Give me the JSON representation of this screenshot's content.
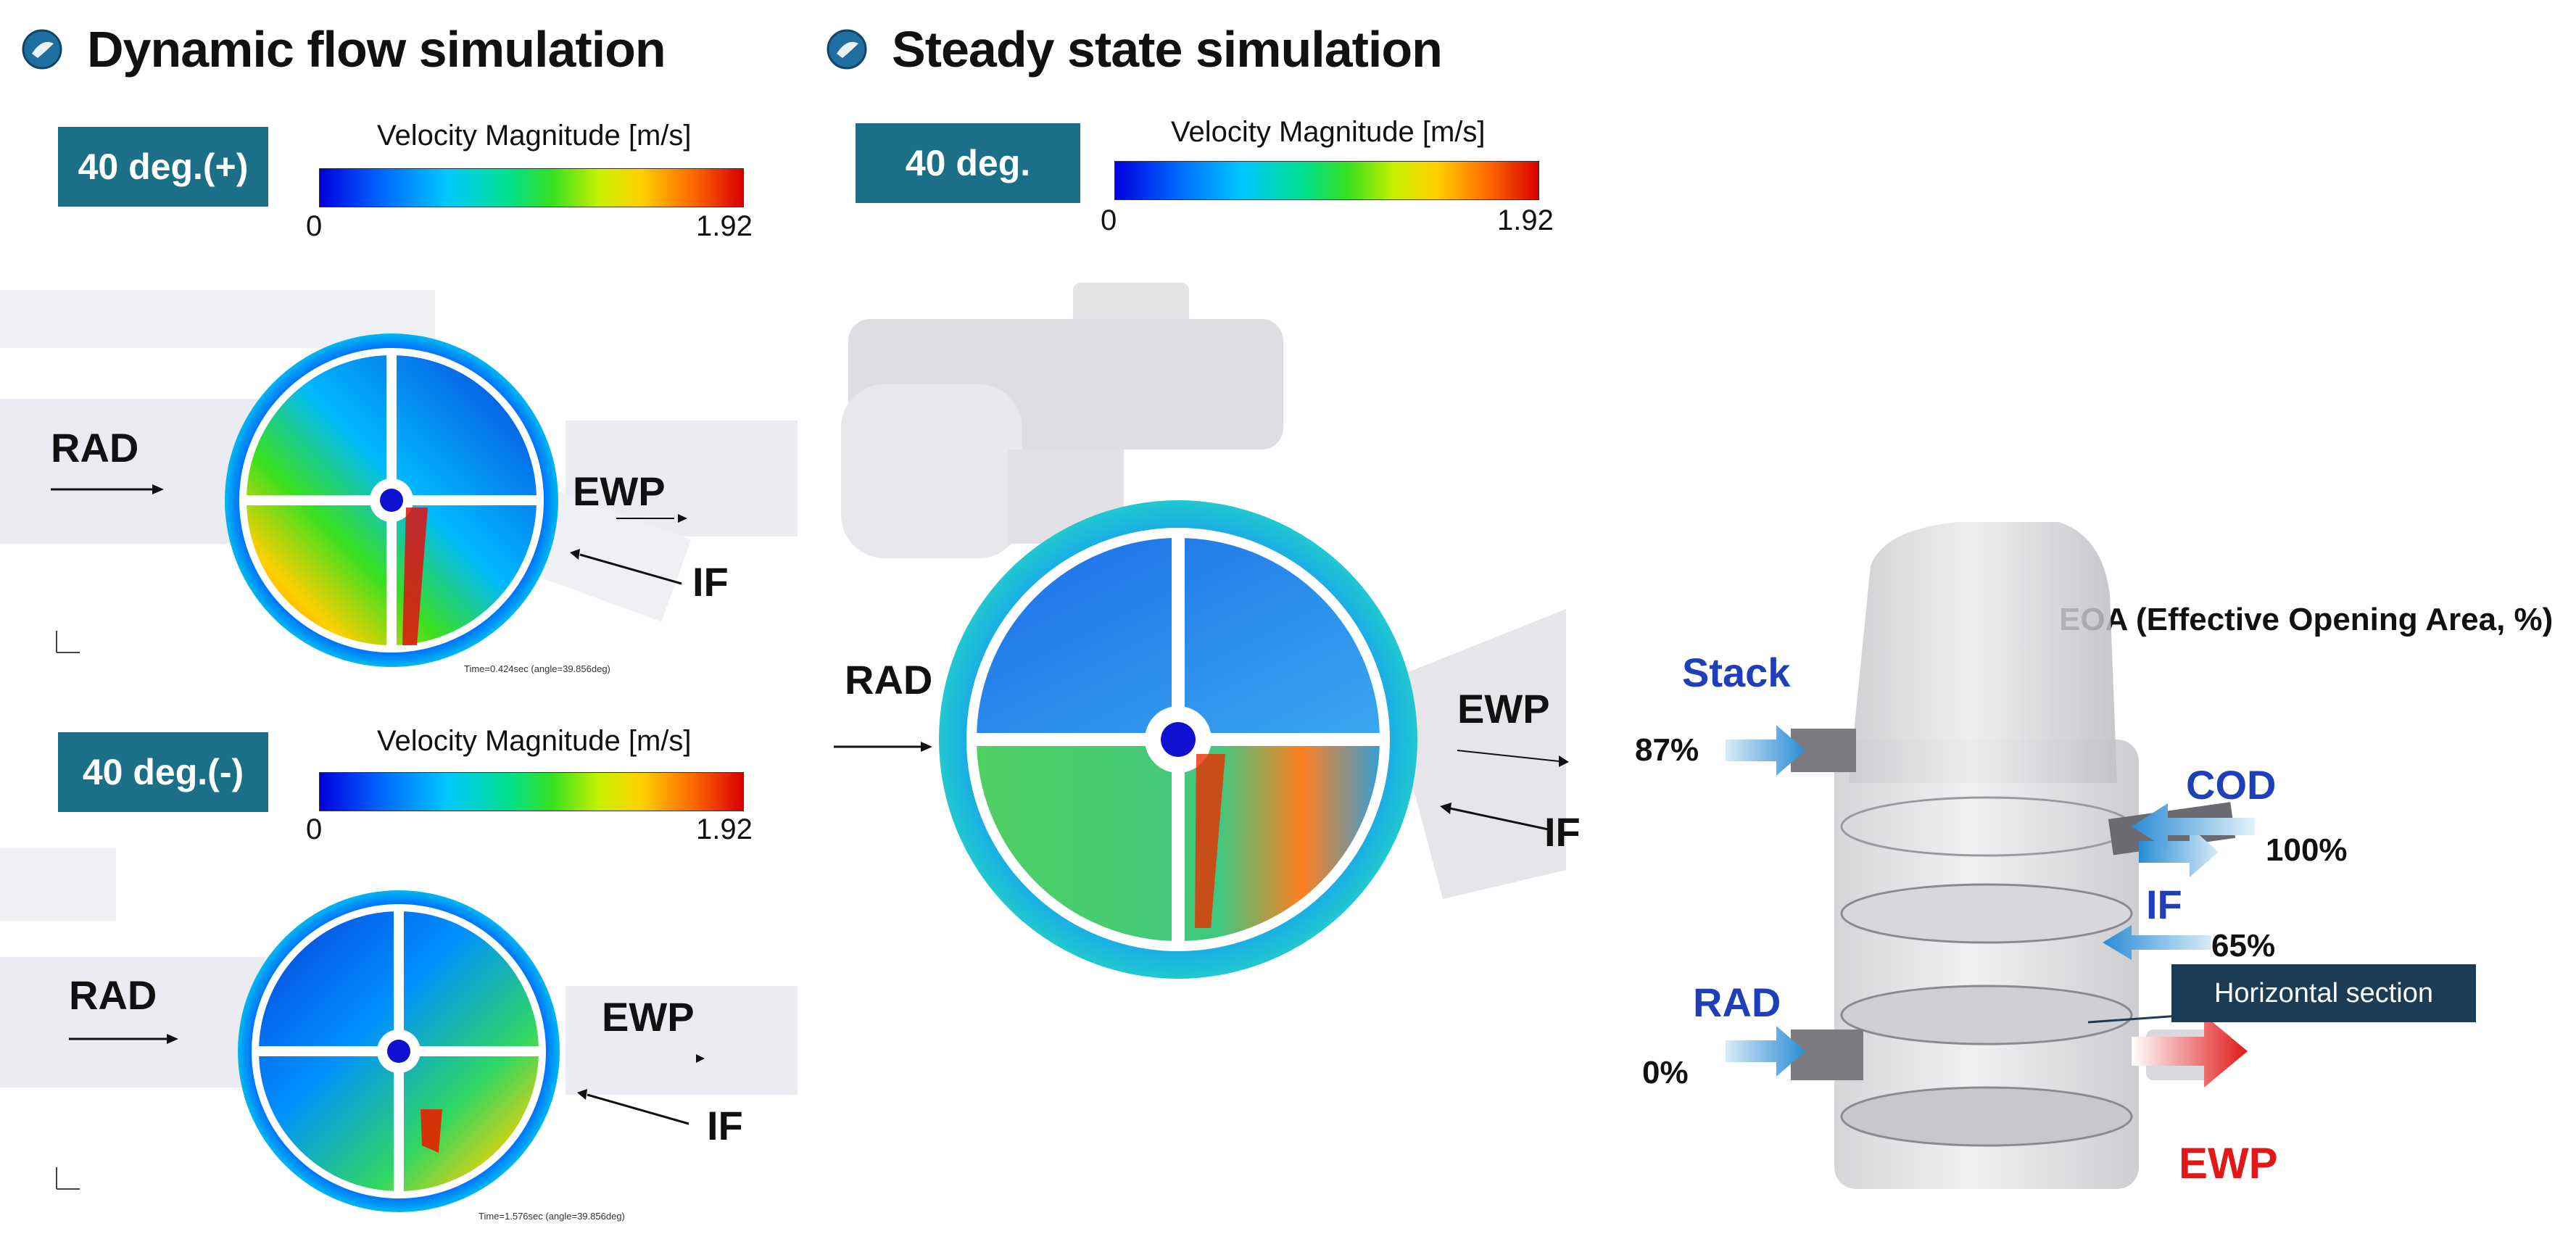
{
  "dynamic": {
    "title": "Dynamic flow simulation",
    "icon": "globe-icon",
    "plus": {
      "badge": "40 deg.(+)",
      "colorbar_title": "Velocity Magnitude [m/s]",
      "min": "0",
      "max": "1.92",
      "labels": {
        "rad": "RAD",
        "ewp": "EWP",
        "if": "IF"
      },
      "caption": "Time=0.424sec (angle=39.856deg)"
    },
    "minus": {
      "badge": "40 deg.(-)",
      "colorbar_title": "Velocity Magnitude [m/s]",
      "min": "0",
      "max": "1.92",
      "labels": {
        "rad": "RAD",
        "ewp": "EWP",
        "if": "IF"
      },
      "caption": "Time=1.576sec (angle=39.856deg)"
    }
  },
  "steady": {
    "title": "Steady state simulation",
    "icon": "globe-icon",
    "badge": "40 deg.",
    "colorbar_title": "Velocity Magnitude [m/s]",
    "min": "0",
    "max": "1.92",
    "labels": {
      "rad": "RAD",
      "ewp": "EWP",
      "if": "IF"
    }
  },
  "eoa": {
    "title": "EOA (Effective Opening Area, %)",
    "stack": {
      "label": "Stack",
      "pct": "87%"
    },
    "cod": {
      "label": "COD",
      "pct": "100%"
    },
    "if": {
      "label": "IF",
      "pct": "65%"
    },
    "rad": {
      "label": "RAD",
      "pct": "0%"
    },
    "ewp": {
      "label": "EWP"
    },
    "section_label": "Horizontal section"
  },
  "colors": {
    "badge": "#1b6f86",
    "eoa_label": "#1f3fb8",
    "ewp_out": "#e01818",
    "arrow_in": "#2a8cd4",
    "section_box": "#1a3c57"
  }
}
